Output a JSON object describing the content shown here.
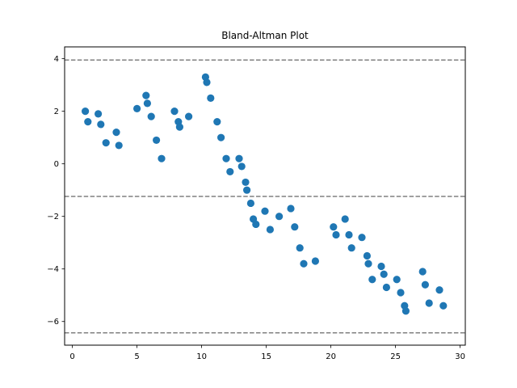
{
  "chart_data": {
    "type": "scatter",
    "title": "Bland-Altman Plot",
    "xlabel": "",
    "ylabel": "",
    "xlim": [
      -0.6,
      30.4
    ],
    "ylim": [
      -6.9,
      4.45
    ],
    "x_ticks": [
      0,
      5,
      10,
      15,
      20,
      25,
      30
    ],
    "y_ticks": [
      4,
      2,
      0,
      -2,
      -4,
      -6
    ],
    "grid": false,
    "marker_color": "#1f77b4",
    "reference_line_color": "#808080",
    "reference_lines": [
      3.95,
      -1.24,
      -6.43
    ],
    "points": [
      {
        "x": 1.0,
        "y": 2.0
      },
      {
        "x": 1.2,
        "y": 1.6
      },
      {
        "x": 2.0,
        "y": 1.9
      },
      {
        "x": 2.2,
        "y": 1.5
      },
      {
        "x": 2.6,
        "y": 0.8
      },
      {
        "x": 3.4,
        "y": 1.2
      },
      {
        "x": 3.6,
        "y": 0.7
      },
      {
        "x": 5.0,
        "y": 2.1
      },
      {
        "x": 5.7,
        "y": 2.6
      },
      {
        "x": 5.8,
        "y": 2.3
      },
      {
        "x": 6.1,
        "y": 1.8
      },
      {
        "x": 6.5,
        "y": 0.9
      },
      {
        "x": 6.9,
        "y": 0.2
      },
      {
        "x": 7.9,
        "y": 2.0
      },
      {
        "x": 8.2,
        "y": 1.6
      },
      {
        "x": 8.3,
        "y": 1.4
      },
      {
        "x": 9.0,
        "y": 1.8
      },
      {
        "x": 10.3,
        "y": 3.3
      },
      {
        "x": 10.4,
        "y": 3.1
      },
      {
        "x": 10.7,
        "y": 2.5
      },
      {
        "x": 11.2,
        "y": 1.6
      },
      {
        "x": 11.5,
        "y": 1.0
      },
      {
        "x": 11.9,
        "y": 0.2
      },
      {
        "x": 12.2,
        "y": -0.3
      },
      {
        "x": 12.9,
        "y": 0.2
      },
      {
        "x": 13.1,
        "y": -0.1
      },
      {
        "x": 13.4,
        "y": -0.7
      },
      {
        "x": 13.5,
        "y": -1.0
      },
      {
        "x": 13.8,
        "y": -1.5
      },
      {
        "x": 14.0,
        "y": -2.1
      },
      {
        "x": 14.2,
        "y": -2.3
      },
      {
        "x": 14.9,
        "y": -1.8
      },
      {
        "x": 15.3,
        "y": -2.5
      },
      {
        "x": 16.0,
        "y": -2.0
      },
      {
        "x": 16.9,
        "y": -1.7
      },
      {
        "x": 17.2,
        "y": -2.4
      },
      {
        "x": 17.6,
        "y": -3.2
      },
      {
        "x": 17.9,
        "y": -3.8
      },
      {
        "x": 18.8,
        "y": -3.7
      },
      {
        "x": 20.2,
        "y": -2.4
      },
      {
        "x": 20.4,
        "y": -2.7
      },
      {
        "x": 21.1,
        "y": -2.1
      },
      {
        "x": 21.4,
        "y": -2.7
      },
      {
        "x": 21.6,
        "y": -3.2
      },
      {
        "x": 22.4,
        "y": -2.8
      },
      {
        "x": 22.8,
        "y": -3.5
      },
      {
        "x": 22.9,
        "y": -3.8
      },
      {
        "x": 23.2,
        "y": -4.4
      },
      {
        "x": 23.9,
        "y": -3.9
      },
      {
        "x": 24.1,
        "y": -4.2
      },
      {
        "x": 24.3,
        "y": -4.7
      },
      {
        "x": 25.1,
        "y": -4.4
      },
      {
        "x": 25.4,
        "y": -4.9
      },
      {
        "x": 25.7,
        "y": -5.4
      },
      {
        "x": 25.8,
        "y": -5.6
      },
      {
        "x": 27.1,
        "y": -4.1
      },
      {
        "x": 27.3,
        "y": -4.6
      },
      {
        "x": 27.6,
        "y": -5.3
      },
      {
        "x": 28.4,
        "y": -4.8
      },
      {
        "x": 28.7,
        "y": -5.4
      }
    ]
  }
}
